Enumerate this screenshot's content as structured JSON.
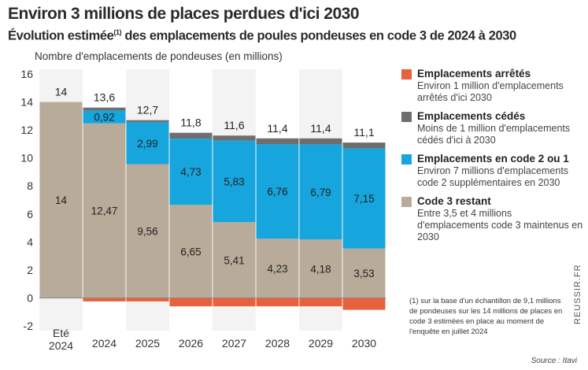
{
  "title": "Environ 3 millions de places perdues d'ici 2030",
  "subtitle_main": "Évolution estimée",
  "subtitle_note_mark": "(1)",
  "subtitle_rest": " des emplacements de poules pondeuses en code 3 de 2024 à 2030",
  "source": "Source : Itavi",
  "watermark": "REUSSIR.FR",
  "note": "(1)  sur la base d'un échantillon de 9,1 millions de pondeuses sur les 14 millions de places en code 3 estimées en place au moment de l'enquête en juillet 2024",
  "colors": {
    "arretes": "#e8603c",
    "cedes": "#6d6e70",
    "code2": "#16a5dd",
    "code3": "#b8ab99"
  },
  "legend": [
    {
      "key": "arretes",
      "name": "Emplacements arrêtés",
      "desc": "Environ 1 million d'emplacements arrêtés d'ici 2030"
    },
    {
      "key": "cedes",
      "name": "Emplacements cédés",
      "desc": "Moins de 1 million d'emplacements cédés d'ici à 2030"
    },
    {
      "key": "code2",
      "name": "Emplacements en code 2 ou 1",
      "desc": "Environ 7 millions d'emplacements code 2 supplémentaires en 2030"
    },
    {
      "key": "code3",
      "name": "Code 3 restant",
      "desc": "Entre 3,5 et 4 millions d'emplacements code 3 maintenus en 2030"
    }
  ],
  "chart_data": {
    "type": "bar",
    "stacked": true,
    "ylabel": "Nombre d'emplacements de pondeuses (en millions)",
    "ylim": [
      -2,
      16
    ],
    "yticks": [
      -2,
      0,
      2,
      4,
      6,
      8,
      10,
      12,
      14,
      16
    ],
    "categories": [
      [
        "Eté",
        "2024"
      ],
      [
        "2024"
      ],
      [
        "2025"
      ],
      [
        "2026"
      ],
      [
        "2027"
      ],
      [
        "2028"
      ],
      [
        "2029"
      ],
      [
        "2030"
      ]
    ],
    "totals": [
      14,
      13.6,
      12.7,
      11.8,
      11.6,
      11.4,
      11.4,
      11.1
    ],
    "total_labels": [
      "14",
      "13,6",
      "12,7",
      "11,8",
      "11,6",
      "11,4",
      "11,4",
      "11,1"
    ],
    "series": [
      {
        "key": "code3",
        "name": "Code 3 restant",
        "values": [
          14,
          12.47,
          9.56,
          6.65,
          5.41,
          4.23,
          4.18,
          3.53
        ],
        "labels": [
          "14",
          "12,47",
          "9,56",
          "6,65",
          "5,41",
          "4,23",
          "4,18",
          "3,53"
        ]
      },
      {
        "key": "code2",
        "name": "Emplacements en code 2 ou 1",
        "values": [
          0,
          0.92,
          2.99,
          4.73,
          5.83,
          6.76,
          6.79,
          7.15
        ],
        "labels": [
          "",
          "0,92",
          "2,99",
          "4,73",
          "5,83",
          "6,76",
          "6,79",
          "7,15"
        ]
      },
      {
        "key": "cedes",
        "name": "Emplacements cédés",
        "values": [
          0,
          0.21,
          0.15,
          0.42,
          0.36,
          0.41,
          0.43,
          0.42
        ],
        "labels": [
          "",
          "",
          "",
          "",
          "",
          "",
          "",
          ""
        ]
      },
      {
        "key": "arretes",
        "name": "Emplacements arrêtés",
        "values": [
          0,
          -0.25,
          -0.25,
          -0.6,
          -0.6,
          -0.6,
          -0.6,
          -0.85
        ],
        "labels": [
          "",
          "",
          "",
          "",
          "",
          "",
          "",
          ""
        ]
      }
    ]
  }
}
